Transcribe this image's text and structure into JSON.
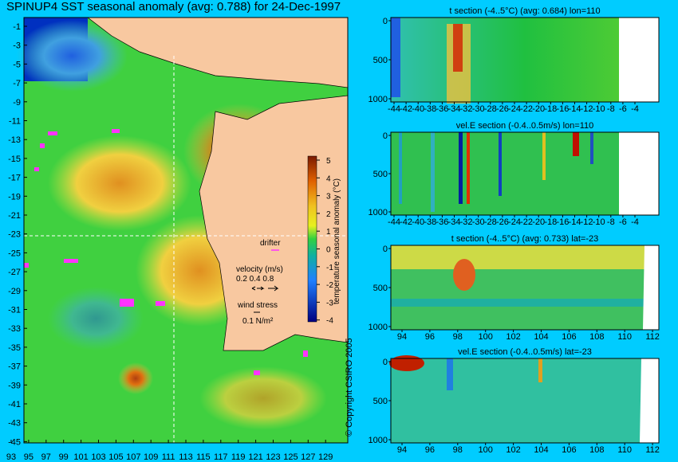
{
  "main_title": "SPINUP4 SST seasonal anomaly (avg: 0.788) for 24-Dec-1997",
  "copyright": "© Copyright CSIRO 2005",
  "map": {
    "lat_ticks": [
      "-1",
      "-3",
      "-5",
      "-7",
      "-9",
      "-11",
      "-13",
      "-15",
      "-17",
      "-19",
      "-21",
      "-23",
      "-25",
      "-27",
      "-29",
      "-31",
      "-33",
      "-35",
      "-37",
      "-39",
      "-41",
      "-43",
      "-45"
    ],
    "lon_ticks": [
      "93",
      "95",
      "97",
      "99",
      "101",
      "103",
      "105",
      "107",
      "109",
      "111",
      "113",
      "115",
      "117",
      "119",
      "121",
      "123",
      "125",
      "127",
      "129"
    ],
    "colorbar": {
      "label": "temperature seasonal anomaly (°C)",
      "ticks": [
        "5",
        "4",
        "3",
        "2",
        "1",
        "0",
        "-1",
        "-2",
        "-3",
        "-4"
      ]
    },
    "legend": {
      "drifter": "drifter",
      "velocity_title": "velocity (m/s)",
      "velocity_scale": "0.2 0.4 0.8",
      "wind_title": "wind stress",
      "wind_scale": "0.1 N/m²"
    }
  },
  "sections": [
    {
      "title": "t section (-4..5°C) (avg: 0.684) lon=110",
      "x_ticks": [
        "-44",
        "-42",
        "-40",
        "-38",
        "-36",
        "-34",
        "-32",
        "-30",
        "-28",
        "-26",
        "-24",
        "-22",
        "-20",
        "-18",
        "-16",
        "-14",
        "-12",
        "-10",
        "-8",
        "-6",
        "-4"
      ],
      "y_ticks": [
        "0",
        "500",
        "1000"
      ]
    },
    {
      "title": "vel.E section (-0.4..0.5m/s) lon=110",
      "x_ticks": [
        "-44",
        "-42",
        "-40",
        "-38",
        "-36",
        "-34",
        "-32",
        "-30",
        "-28",
        "-26",
        "-24",
        "-22",
        "-20",
        "-18",
        "-16",
        "-14",
        "-12",
        "-10",
        "-8",
        "-6",
        "-4"
      ],
      "y_ticks": [
        "0",
        "500",
        "1000"
      ]
    },
    {
      "title": "t section (-4..5°C) (avg: 0.733) lat=-23",
      "x_ticks": [
        "94",
        "96",
        "98",
        "100",
        "102",
        "104",
        "106",
        "108",
        "110",
        "112"
      ],
      "y_ticks": [
        "0",
        "500",
        "1000"
      ]
    },
    {
      "title": "vel.E section (-0.4..0.5m/s) lat=-23",
      "x_ticks": [
        "94",
        "96",
        "98",
        "100",
        "102",
        "104",
        "106",
        "108",
        "110",
        "112"
      ],
      "y_ticks": [
        "0",
        "500",
        "1000"
      ]
    }
  ],
  "chart_data": [
    {
      "type": "heatmap",
      "title": "SPINUP4 SST seasonal anomaly (avg: 0.788) for 24-Dec-1997",
      "xlim": [
        93,
        130
      ],
      "ylim": [
        -45,
        0
      ],
      "color_range": [
        -4,
        5
      ],
      "units": "°C"
    },
    {
      "type": "heatmap",
      "title": "t section (-4..5°C) (avg: 0.684) lon=110",
      "xlim": [
        -45,
        -3
      ],
      "ylim": [
        1050,
        0
      ],
      "color_range": [
        -4,
        5
      ]
    },
    {
      "type": "heatmap",
      "title": "vel.E section (-0.4..0.5m/s) lon=110",
      "xlim": [
        -45,
        -3
      ],
      "ylim": [
        1050,
        0
      ],
      "color_range": [
        -0.4,
        0.5
      ]
    },
    {
      "type": "heatmap",
      "title": "t section (-4..5°C) (avg: 0.733) lat=-23",
      "xlim": [
        93,
        114
      ],
      "ylim": [
        1050,
        0
      ],
      "color_range": [
        -4,
        5
      ]
    },
    {
      "type": "heatmap",
      "title": "vel.E section (-0.4..0.5m/s) lat=-23",
      "xlim": [
        93,
        114
      ],
      "ylim": [
        1050,
        0
      ],
      "color_range": [
        -0.4,
        0.5
      ]
    }
  ],
  "colors": {
    "background": "#00ccff",
    "land": "#f8c8a0",
    "drifter": "#ff33ff"
  }
}
